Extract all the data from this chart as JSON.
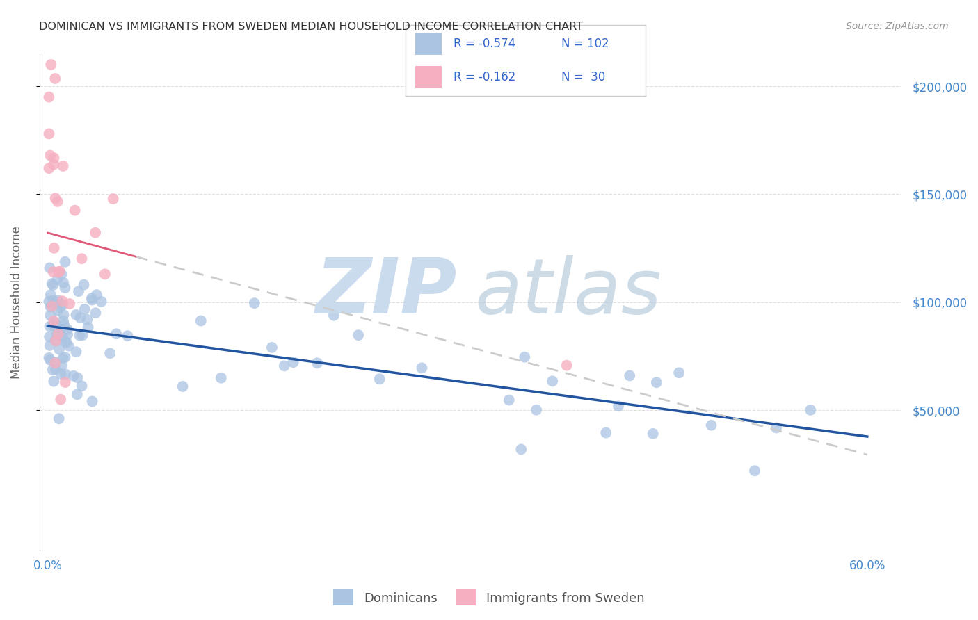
{
  "title": "DOMINICAN VS IMMIGRANTS FROM SWEDEN MEDIAN HOUSEHOLD INCOME CORRELATION CHART",
  "source": "Source: ZipAtlas.com",
  "ylabel": "Median Household Income",
  "ytick_vals": [
    50000,
    100000,
    150000,
    200000
  ],
  "ytick_labels": [
    "$50,000",
    "$100,000",
    "$150,000",
    "$200,000"
  ],
  "ymax": 215000,
  "ymin": -15000,
  "xmin": -0.006,
  "xmax": 0.625,
  "legend_r_blue": "-0.574",
  "legend_n_blue": "102",
  "legend_r_pink": "-0.162",
  "legend_n_pink": " 30",
  "legend_label_blue": "Dominicans",
  "legend_label_pink": "Immigrants from Sweden",
  "blue_scatter_color": "#aac4e2",
  "pink_scatter_color": "#f5afc0",
  "blue_line_color": "#2255a0",
  "pink_line_color": "#e05878",
  "pink_dash_color": "#cccccc",
  "bg_color": "#ffffff",
  "grid_color": "#dddddd",
  "tick_color": "#4488cc",
  "title_color": "#333333",
  "ylabel_color": "#666666",
  "watermark_zip_color": "#c5d8ec",
  "watermark_atlas_color": "#b8ccde",
  "source_color": "#999999"
}
